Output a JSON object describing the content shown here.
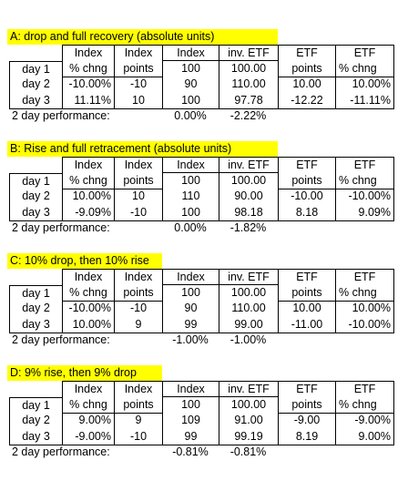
{
  "sections": [
    {
      "title": "A: drop and full recovery (absolute units)",
      "header": [
        "Index",
        "Index",
        "Index",
        "inv. ETF",
        "ETF",
        "ETF"
      ],
      "rows": [
        [
          "day 1",
          "% chng",
          "points",
          "100",
          "100.00",
          "points",
          "% chng"
        ],
        [
          "day 2",
          "-10.00%",
          "-10",
          "90",
          "110.00",
          "10.00",
          "10.00%"
        ],
        [
          "day 3",
          "11.11%",
          "10",
          "100",
          "97.78",
          "-12.22",
          "-11.11%"
        ]
      ],
      "performance": {
        "label": "2 day performance:",
        "index": "0.00%",
        "inv_etf": "-2.22%"
      }
    },
    {
      "title": "B: Rise and full retracement (absolute units)",
      "header": [
        "Index",
        "Index",
        "Index",
        "inv. ETF",
        "ETF",
        "ETF"
      ],
      "rows": [
        [
          "day 1",
          "% chng",
          "points",
          "100",
          "100.00",
          "points",
          "% chng"
        ],
        [
          "day 2",
          "10.00%",
          "10",
          "110",
          "90.00",
          "-10.00",
          "-10.00%"
        ],
        [
          "day 3",
          "-9.09%",
          "-10",
          "100",
          "98.18",
          "8.18",
          "9.09%"
        ]
      ],
      "performance": {
        "label": "2 day performance:",
        "index": "0.00%",
        "inv_etf": "-1.82%"
      }
    },
    {
      "title": "C: 10% drop, then 10% rise",
      "header": [
        "Index",
        "Index",
        "Index",
        "inv. ETF",
        "ETF",
        "ETF"
      ],
      "rows": [
        [
          "day 1",
          "% chng",
          "points",
          "100",
          "100.00",
          "points",
          "% chng"
        ],
        [
          "day 2",
          "-10.00%",
          "-10",
          "90",
          "110.00",
          "10.00",
          "10.00%"
        ],
        [
          "day 3",
          "10.00%",
          "9",
          "99",
          "99.00",
          "-11.00",
          "-10.00%"
        ]
      ],
      "performance": {
        "label": "2 day performance:",
        "index": "-1.00%",
        "inv_etf": "-1.00%"
      }
    },
    {
      "title": "D: 9% rise, then 9% drop",
      "header": [
        "Index",
        "Index",
        "Index",
        "inv. ETF",
        "ETF",
        "ETF"
      ],
      "rows": [
        [
          "day 1",
          "% chng",
          "points",
          "100",
          "100.00",
          "points",
          "% chng"
        ],
        [
          "day 2",
          "9.00%",
          "9",
          "109",
          "91.00",
          "-9.00",
          "-9.00%"
        ],
        [
          "day 3",
          "-9.00%",
          "-10",
          "99",
          "99.19",
          "8.19",
          "9.00%"
        ]
      ],
      "performance": {
        "label": "2 day performance:",
        "index": "-0.81%",
        "inv_etf": "-0.81%"
      }
    }
  ]
}
